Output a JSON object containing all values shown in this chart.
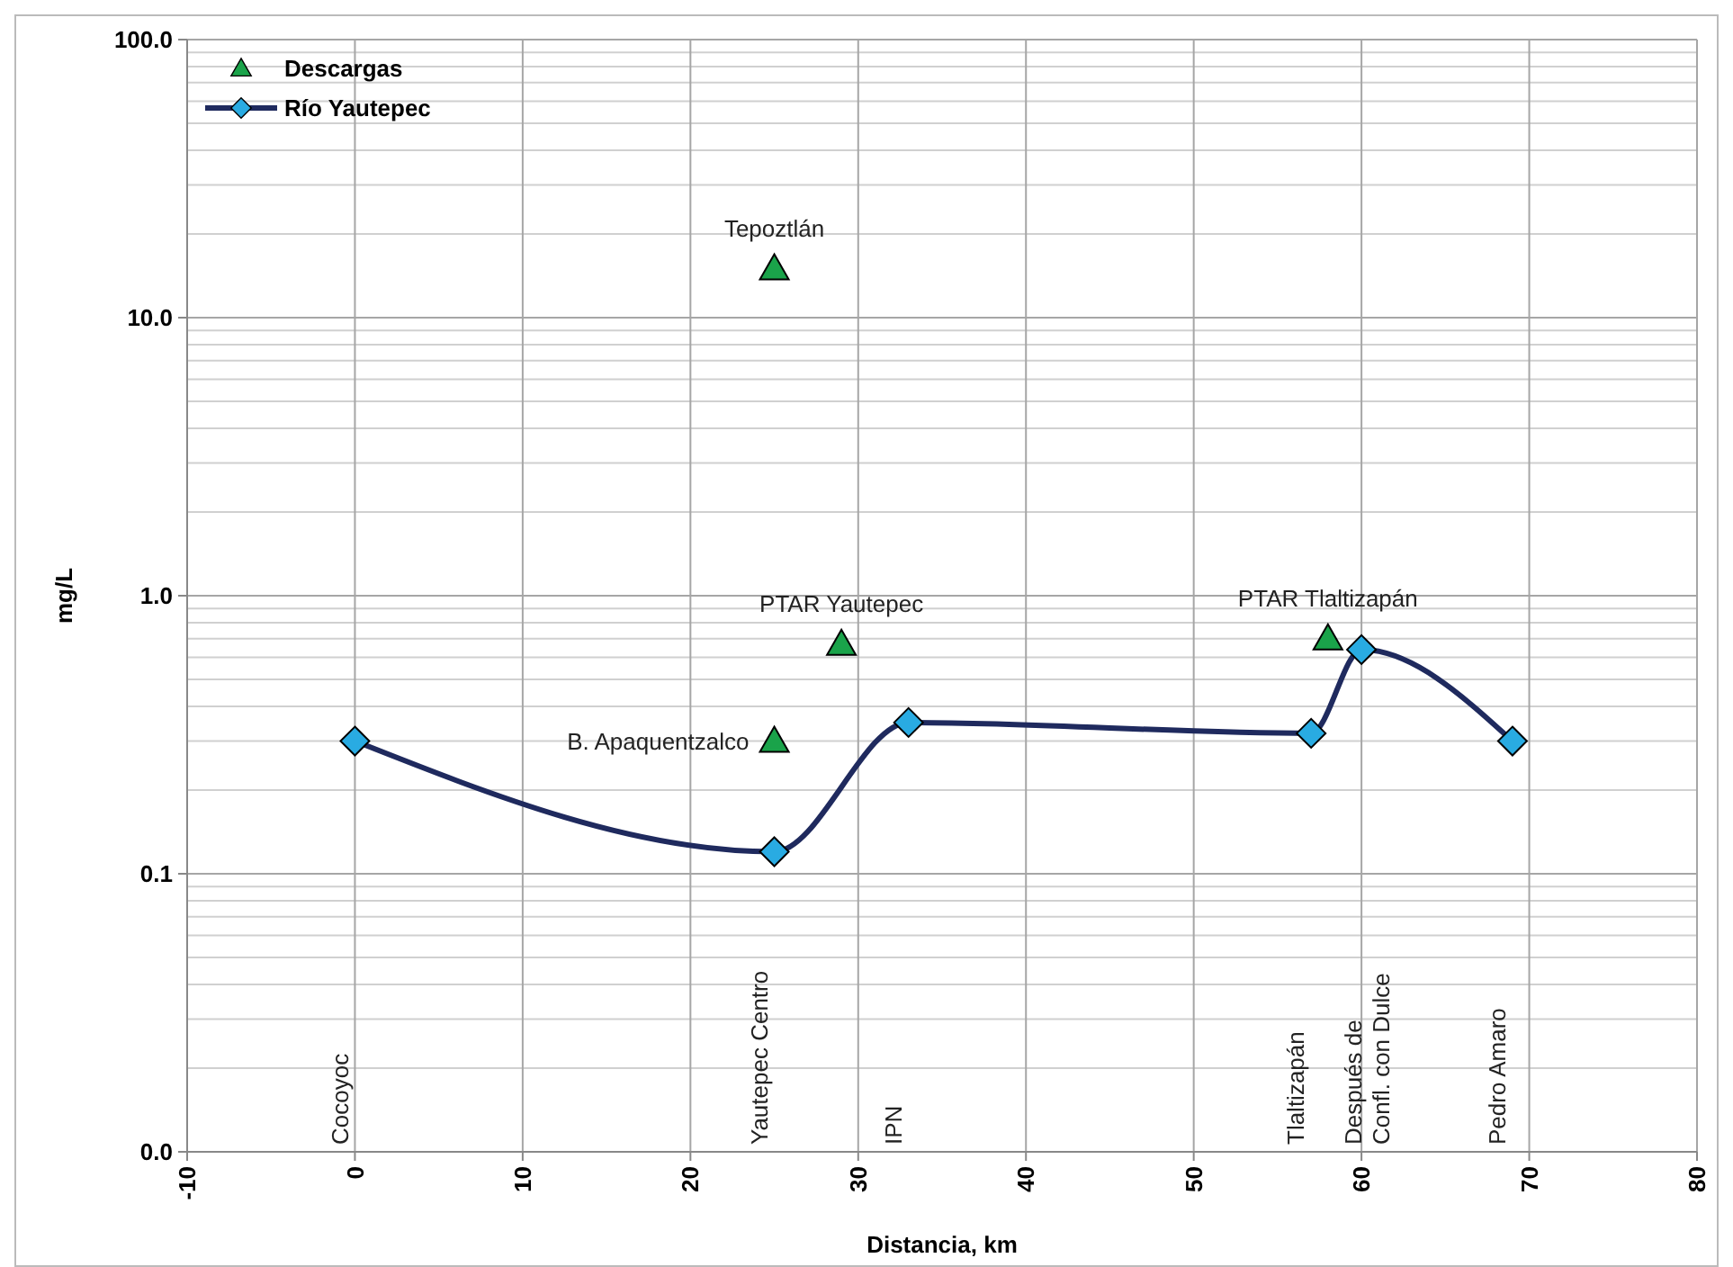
{
  "chart_data": {
    "type": "line",
    "xlabel": "Distancia, km",
    "ylabel": "mg/L",
    "log": "y",
    "grid": true,
    "legend": "top left",
    "xlim": [
      -10,
      80
    ],
    "xticks": [
      -10,
      0,
      10,
      20,
      30,
      40,
      50,
      60,
      70,
      80
    ],
    "ylim": [
      0.01,
      100
    ],
    "yticks": [
      {
        "value": 0.01,
        "label": "0.0"
      },
      0.1,
      {
        "value": 1,
        "label": "1.0"
      },
      {
        "value": 10,
        "label": "10.0"
      },
      {
        "value": 100,
        "label": "100.0"
      }
    ],
    "series": [
      {
        "name": "Descargas",
        "type": "scatter",
        "marker": "triangle",
        "color": "#1aa34a",
        "x": [
          25,
          29,
          25,
          58
        ],
        "values": [
          15,
          0.67,
          0.3,
          0.7
        ]
      },
      {
        "name": "Río Yautepec",
        "marker": "diamond",
        "color": "#1f2a5e",
        "x": [
          0,
          25,
          33,
          57,
          60,
          69
        ],
        "values": [
          0.3,
          0.12,
          0.35,
          0.32,
          0.64,
          0.3
        ]
      }
    ],
    "annotations": [
      {
        "text": "Tepoztlán",
        "x": 25,
        "y": 15
      },
      {
        "text": "PTAR Yautepec",
        "x": 29,
        "y": 0.67
      },
      {
        "text": "B.  Apaquentzalco",
        "x": 25,
        "y": 0.3
      },
      {
        "text": "PTAR Tlaltizapán",
        "x": 58,
        "y": 0.7
      },
      "Cocoyoc",
      "Yautepec Centro",
      "IPN",
      "Tlaltizapán",
      "Después  de\nConfl. con Dulce",
      "Pedro Amaro"
    ]
  }
}
